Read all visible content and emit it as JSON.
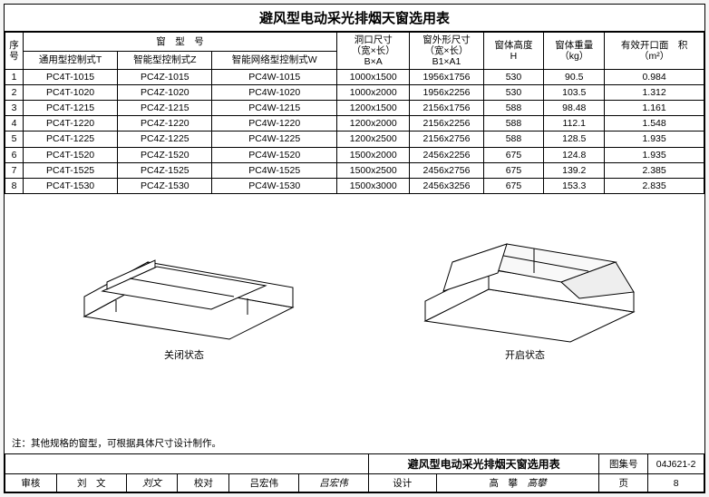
{
  "title": "避风型电动采光排烟天窗选用表",
  "headers": {
    "seq": "序号",
    "model_group": "窗　型　号",
    "model_t": "通用型控制式T",
    "model_z": "智能型控制式Z",
    "model_w": "智能网络型控制式W",
    "hole": "洞口尺寸",
    "hole_sub": "（宽×长）",
    "hole_code": "B×A",
    "outer": "窗外形尺寸",
    "outer_sub": "（宽×长）",
    "outer_code": "B1×A1",
    "height": "窗体高度",
    "height_code": "H",
    "weight": "窗体重量",
    "weight_unit": "（kg）",
    "area": "有效开口面　积",
    "area_unit": "（m²）"
  },
  "rows": [
    {
      "n": "1",
      "t": "PC4T-1015",
      "z": "PC4Z-1015",
      "w": "PC4W-1015",
      "hole": "1000x1500",
      "outer": "1956x1756",
      "h": "530",
      "kg": "90.5",
      "a": "0.984"
    },
    {
      "n": "2",
      "t": "PC4T-1020",
      "z": "PC4Z-1020",
      "w": "PC4W-1020",
      "hole": "1000x2000",
      "outer": "1956x2256",
      "h": "530",
      "kg": "103.5",
      "a": "1.312"
    },
    {
      "n": "3",
      "t": "PC4T-1215",
      "z": "PC4Z-1215",
      "w": "PC4W-1215",
      "hole": "1200x1500",
      "outer": "2156x1756",
      "h": "588",
      "kg": "98.48",
      "a": "1.161"
    },
    {
      "n": "4",
      "t": "PC4T-1220",
      "z": "PC4Z-1220",
      "w": "PC4W-1220",
      "hole": "1200x2000",
      "outer": "2156x2256",
      "h": "588",
      "kg": "112.1",
      "a": "1.548"
    },
    {
      "n": "5",
      "t": "PC4T-1225",
      "z": "PC4Z-1225",
      "w": "PC4W-1225",
      "hole": "1200x2500",
      "outer": "2156x2756",
      "h": "588",
      "kg": "128.5",
      "a": "1.935"
    },
    {
      "n": "6",
      "t": "PC4T-1520",
      "z": "PC4Z-1520",
      "w": "PC4W-1520",
      "hole": "1500x2000",
      "outer": "2456x2256",
      "h": "675",
      "kg": "124.8",
      "a": "1.935"
    },
    {
      "n": "7",
      "t": "PC4T-1525",
      "z": "PC4Z-1525",
      "w": "PC4W-1525",
      "hole": "1500x2500",
      "outer": "2456x2756",
      "h": "675",
      "kg": "139.2",
      "a": "2.385"
    },
    {
      "n": "8",
      "t": "PC4T-1530",
      "z": "PC4Z-1530",
      "w": "PC4W-1530",
      "hole": "1500x3000",
      "outer": "2456x3256",
      "h": "675",
      "kg": "153.3",
      "a": "2.835"
    }
  ],
  "captions": {
    "closed": "关闭状态",
    "open": "开启状态"
  },
  "note": "注：其他规格的窗型，可根据具体尺寸设计制作。",
  "titleblock": {
    "drawing_title": "避风型电动采光排烟天窗选用表",
    "set_label": "图集号",
    "set_no": "04J621-2",
    "review_label": "审核",
    "reviewer": "刘　文",
    "check_label": "校对",
    "checker": "吕宏伟",
    "design_label": "设计",
    "designer": "高　攀",
    "page_label": "页",
    "page_no": "8",
    "sig1": "刘文",
    "sig2": "吕宏伟",
    "sig3": "高攀"
  },
  "svg": {
    "stroke": "#000",
    "fill": "#fff",
    "hatch": "#888"
  }
}
